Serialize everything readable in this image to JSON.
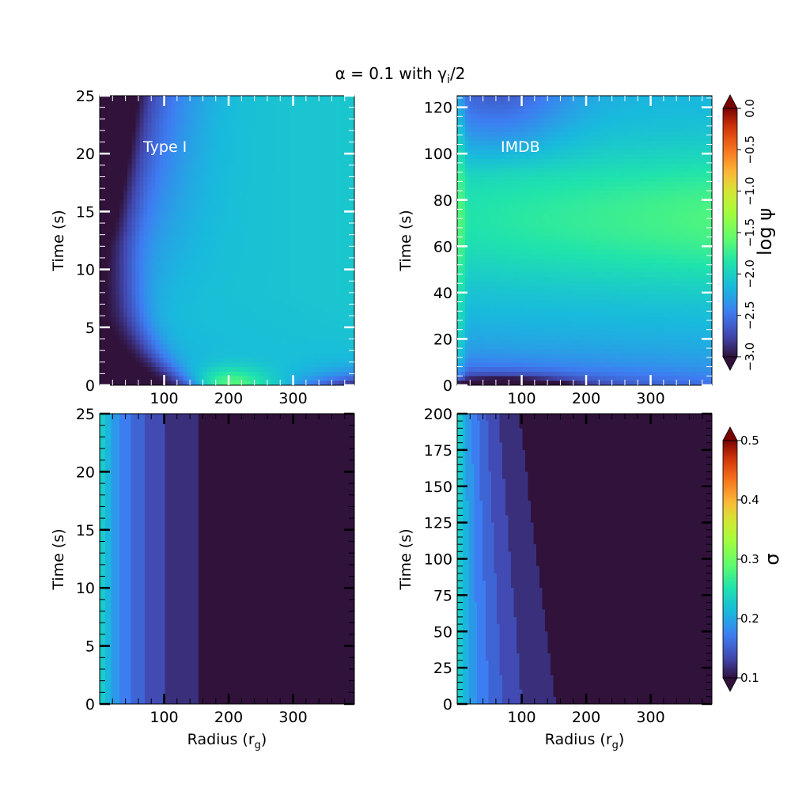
{
  "figure": {
    "title": "α = 0.1 with γ",
    "title_sub": "i",
    "title_tail": "/2"
  },
  "colormap": "turbo",
  "chart_data": [
    {
      "type": "heatmap",
      "id": "top-left",
      "annotation": "Type I",
      "xlabel": "",
      "ylabel": "Time (s)",
      "xlim": [
        0,
        395
      ],
      "ylim": [
        0,
        25
      ],
      "xticks": [
        100,
        200,
        300
      ],
      "yticks": [
        0,
        5,
        10,
        15,
        20,
        25
      ],
      "quantity": "log ψ",
      "value_range": [
        -3.0,
        0.0
      ],
      "description_of_field": "dark region (≈-3) at small radius for t < ~5 s; hot spot (≈-1.5) near r≈200 at t≈0; values ≈-2.2 to -2.0 over most of domain"
    },
    {
      "type": "heatmap",
      "id": "top-right",
      "annotation": "IMDB",
      "xlabel": "",
      "ylabel": "Time (s)",
      "xlim": [
        0,
        395
      ],
      "ylim": [
        0,
        125
      ],
      "xticks": [
        100,
        200,
        300
      ],
      "yticks": [
        0,
        20,
        40,
        60,
        80,
        100,
        120
      ],
      "quantity": "log ψ",
      "value_range": [
        -3.0,
        0.0
      ],
      "description_of_field": "peak (≈-1.6) band around t≈60–80 s at large radius; low (≈-3) near t<5 s"
    },
    {
      "type": "heatmap",
      "id": "bottom-left",
      "annotation": "",
      "xlabel": "Radius (r_g)",
      "ylabel": "Time (s)",
      "xlim": [
        0,
        395
      ],
      "ylim": [
        0,
        25
      ],
      "xticks": [
        100,
        200,
        300
      ],
      "yticks": [
        0,
        5,
        10,
        15,
        20,
        25
      ],
      "quantity": "σ",
      "value_range": [
        0.1,
        0.5
      ],
      "description_of_field": "σ ≈ 0.22 at r≈10 decreasing to ≈0.1 by r≈215; nearly time independent"
    },
    {
      "type": "heatmap",
      "id": "bottom-right",
      "annotation": "",
      "xlabel": "Radius (r_g)",
      "ylabel": "Time (s)",
      "xlim": [
        0,
        395
      ],
      "ylim": [
        0,
        200
      ],
      "xticks": [
        100,
        200,
        300
      ],
      "yticks": [
        0,
        25,
        50,
        75,
        100,
        125,
        150,
        175,
        200
      ],
      "quantity": "σ",
      "value_range": [
        0.1,
        0.5
      ],
      "description_of_field": "σ ≈ 0.22 at r≈10 decreasing with radius; the low-σ boundary moves inward from r≈215 at t=0 to r≈130 at t=200"
    }
  ],
  "colorbars": [
    {
      "id": "top-colorbar",
      "label": "log ψ",
      "min": -3.0,
      "max": 0.0,
      "ticks": [
        "−3.0",
        "−2.5",
        "−2.0",
        "−1.5",
        "−1.0",
        "−0.5",
        "0.0"
      ],
      "tick_values": [
        -3.0,
        -2.5,
        -2.0,
        -1.5,
        -1.0,
        -0.5,
        0.0
      ],
      "extend": "both"
    },
    {
      "id": "bottom-colorbar",
      "label": "σ",
      "min": 0.1,
      "max": 0.5,
      "ticks": [
        "0.1",
        "0.2",
        "0.3",
        "0.4",
        "0.5"
      ],
      "tick_values": [
        0.1,
        0.2,
        0.3,
        0.4,
        0.5
      ],
      "extend": "both"
    }
  ],
  "labels": {
    "ylabel_tl": "Time (s)",
    "ylabel_tr": "Time (s)",
    "ylabel_bl": "Time (s)",
    "ylabel_br": "Time (s)",
    "xlabel_bl": "Radius (r",
    "xlabel_bl_sub": "g",
    "xlabel_bl_tail": ")",
    "xlabel_br": "Radius (r",
    "xlabel_br_sub": "g",
    "xlabel_br_tail": ")",
    "annot_tl": "Type I",
    "annot_tr": "IMDB",
    "cbar_top": "log ψ",
    "cbar_bottom": "σ"
  }
}
